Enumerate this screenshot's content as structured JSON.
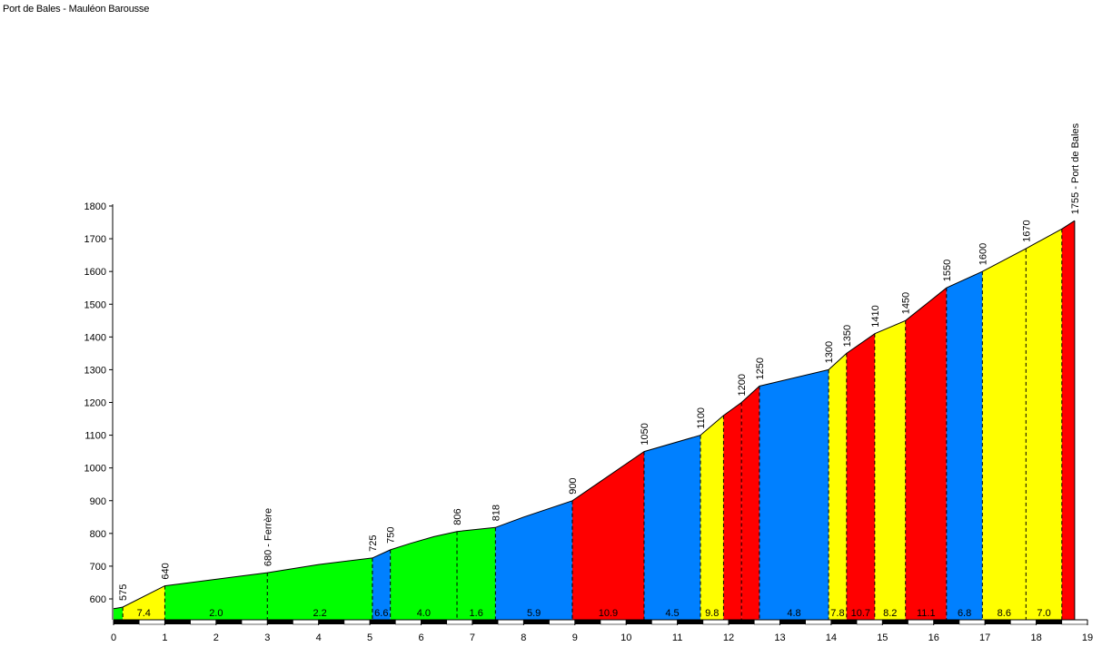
{
  "title": "Port de Bales - Mauléon Barousse",
  "colors": {
    "yellow": "#ffff00",
    "green": "#00ff00",
    "blue": "#0080ff",
    "red": "#ff0000"
  },
  "chart_data": {
    "type": "area",
    "title": "Port de Bales - Mauléon Barousse",
    "xlabel": "",
    "ylabel": "",
    "xlim": [
      0,
      19
    ],
    "ylim": [
      540,
      1800
    ],
    "grid": false,
    "x_ticks": [
      "0",
      "1",
      "2",
      "3",
      "4",
      "5",
      "6",
      "7",
      "8",
      "9",
      "10",
      "11",
      "12",
      "13",
      "14",
      "15",
      "16",
      "17",
      "18",
      "19"
    ],
    "y_ticks": [
      "600",
      "700",
      "800",
      "900",
      "1000",
      "1100",
      "1200",
      "1300",
      "1400",
      "1500",
      "1600",
      "1700",
      "1800"
    ],
    "profile": [
      [
        0,
        570
      ],
      [
        0.18,
        575
      ],
      [
        1,
        640
      ],
      [
        3,
        680
      ],
      [
        4,
        705
      ],
      [
        5.05,
        725
      ],
      [
        5.4,
        750
      ],
      [
        5.8,
        770
      ],
      [
        6.25,
        790
      ],
      [
        6.7,
        806
      ],
      [
        7.45,
        818
      ],
      [
        8,
        850
      ],
      [
        8.95,
        900
      ],
      [
        10.35,
        1050
      ],
      [
        11.45,
        1100
      ],
      [
        11.9,
        1160
      ],
      [
        12.25,
        1200
      ],
      [
        12.6,
        1250
      ],
      [
        13.95,
        1300
      ],
      [
        14.3,
        1350
      ],
      [
        14.85,
        1410
      ],
      [
        15.45,
        1450
      ],
      [
        16.25,
        1550
      ],
      [
        16.95,
        1600
      ],
      [
        17.8,
        1670
      ],
      [
        18.5,
        1730
      ],
      [
        18.75,
        1755
      ]
    ],
    "segments": [
      {
        "x0": 0,
        "x1": 0.18,
        "color": "green",
        "grade": ""
      },
      {
        "x0": 0.18,
        "x1": 1,
        "color": "yellow",
        "grade": "7.4"
      },
      {
        "x0": 1,
        "x1": 3,
        "color": "green",
        "grade": "2.0"
      },
      {
        "x0": 3,
        "x1": 5.05,
        "color": "green",
        "grade": "2.2"
      },
      {
        "x0": 5.05,
        "x1": 5.4,
        "color": "blue",
        "grade": "6.6"
      },
      {
        "x0": 5.4,
        "x1": 6.7,
        "color": "green",
        "grade": "4.0"
      },
      {
        "x0": 6.7,
        "x1": 7.45,
        "color": "green",
        "grade": "1.6"
      },
      {
        "x0": 7.45,
        "x1": 8.95,
        "color": "blue",
        "grade": "5.9"
      },
      {
        "x0": 8.95,
        "x1": 10.35,
        "color": "red",
        "grade": "10.9"
      },
      {
        "x0": 10.35,
        "x1": 11.45,
        "color": "blue",
        "grade": "4.5"
      },
      {
        "x0": 11.45,
        "x1": 11.9,
        "color": "yellow",
        "grade": "9.8"
      },
      {
        "x0": 11.9,
        "x1": 12.25,
        "color": "red",
        "grade": ""
      },
      {
        "x0": 12.25,
        "x1": 12.6,
        "color": "red",
        "grade": ""
      },
      {
        "x0": 12.6,
        "x1": 13.95,
        "color": "blue",
        "grade": "4.8"
      },
      {
        "x0": 13.95,
        "x1": 14.3,
        "color": "yellow",
        "grade": "7.8"
      },
      {
        "x0": 14.3,
        "x1": 14.85,
        "color": "red",
        "grade": "10.7"
      },
      {
        "x0": 14.85,
        "x1": 15.45,
        "color": "yellow",
        "grade": "8.2"
      },
      {
        "x0": 15.45,
        "x1": 16.25,
        "color": "red",
        "grade": "11.1"
      },
      {
        "x0": 16.25,
        "x1": 16.95,
        "color": "blue",
        "grade": "6.8"
      },
      {
        "x0": 16.95,
        "x1": 17.8,
        "color": "yellow",
        "grade": "8.6"
      },
      {
        "x0": 17.8,
        "x1": 18.5,
        "color": "yellow",
        "grade": "7.0"
      },
      {
        "x0": 18.5,
        "x1": 18.75,
        "color": "red",
        "grade": ""
      }
    ],
    "dividers": [
      0.18,
      1,
      3,
      5.05,
      5.4,
      6.7,
      7.45,
      8.95,
      10.35,
      11.45,
      11.9,
      12.25,
      12.6,
      13.95,
      14.3,
      14.85,
      15.45,
      16.25,
      16.95,
      17.8,
      18.5
    ],
    "altitude_labels": [
      {
        "x": 0.18,
        "y": 575,
        "text": "575"
      },
      {
        "x": 1,
        "y": 640,
        "text": "640"
      },
      {
        "x": 3,
        "y": 680,
        "text": "680 - Ferrère"
      },
      {
        "x": 5.05,
        "y": 725,
        "text": "725"
      },
      {
        "x": 5.4,
        "y": 750,
        "text": "750"
      },
      {
        "x": 6.7,
        "y": 806,
        "text": "806"
      },
      {
        "x": 7.45,
        "y": 818,
        "text": "818"
      },
      {
        "x": 8.95,
        "y": 900,
        "text": "900"
      },
      {
        "x": 10.35,
        "y": 1050,
        "text": "1050"
      },
      {
        "x": 11.45,
        "y": 1100,
        "text": "1100"
      },
      {
        "x": 12.25,
        "y": 1200,
        "text": "1200"
      },
      {
        "x": 12.6,
        "y": 1250,
        "text": "1250"
      },
      {
        "x": 13.95,
        "y": 1300,
        "text": "1300"
      },
      {
        "x": 14.3,
        "y": 1350,
        "text": "1350"
      },
      {
        "x": 14.85,
        "y": 1410,
        "text": "1410"
      },
      {
        "x": 15.45,
        "y": 1450,
        "text": "1450"
      },
      {
        "x": 16.25,
        "y": 1550,
        "text": "1550"
      },
      {
        "x": 16.95,
        "y": 1600,
        "text": "1600"
      },
      {
        "x": 17.8,
        "y": 1670,
        "text": "1670"
      },
      {
        "x": 18.75,
        "y": 1755,
        "text": "1755 - Port de Bales"
      }
    ]
  }
}
